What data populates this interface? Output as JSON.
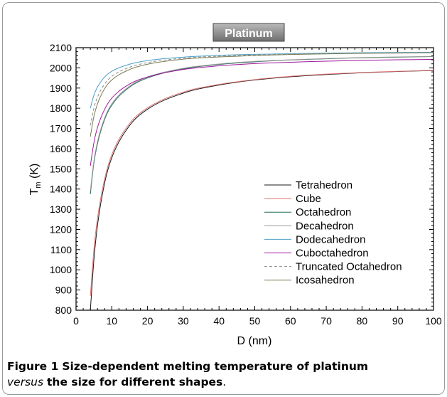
{
  "figure": {
    "label": "Figure 1",
    "caption_part1": "Size-dependent melting temperature of platinum",
    "caption_italic": "versus",
    "caption_part2": "the size for different shapes",
    "caption_end": "."
  },
  "chart_data": {
    "type": "line",
    "title": "Platinum",
    "xlabel": "D (nm)",
    "ylabel_main": "T",
    "ylabel_sub": "m",
    "ylabel_unit": " (K)",
    "xlim": [
      0,
      100
    ],
    "ylim": [
      800,
      2100
    ],
    "xticks": [
      0,
      10,
      20,
      30,
      40,
      50,
      60,
      70,
      80,
      90,
      100
    ],
    "yticks": [
      800,
      900,
      1000,
      1100,
      1200,
      1300,
      1400,
      1500,
      1600,
      1700,
      1800,
      1900,
      2000,
      2100
    ],
    "grid": false,
    "legend_position": "lower-right",
    "x": [
      4,
      5,
      6,
      8,
      10,
      15,
      20,
      30,
      40,
      50,
      60,
      70,
      80,
      90,
      100
    ],
    "series": [
      {
        "name": "Tetrahedron",
        "color": "#1a1a1a",
        "dash": "",
        "values": [
          800,
          1050,
          1220,
          1430,
          1555,
          1715,
          1795,
          1875,
          1915,
          1940,
          1956,
          1967,
          1976,
          1982,
          1987
        ]
      },
      {
        "name": "Cube",
        "color": "#e07070",
        "dash": "",
        "values": [
          870,
          1100,
          1255,
          1450,
          1570,
          1725,
          1802,
          1880,
          1918,
          1942,
          1958,
          1969,
          1977,
          1983,
          1988
        ]
      },
      {
        "name": "Octahedron",
        "color": "#1f6b55",
        "dash": "",
        "values": [
          1375,
          1530,
          1625,
          1745,
          1815,
          1905,
          1950,
          1995,
          2017,
          2030,
          2039,
          2045,
          2050,
          2053,
          2056
        ]
      },
      {
        "name": "Decahedron",
        "color": "#9a9a9a",
        "dash": "",
        "values": [
          1390,
          1540,
          1635,
          1752,
          1822,
          1910,
          1954,
          1998,
          2019,
          2032,
          2040,
          2046,
          2051,
          2054,
          2057
        ]
      },
      {
        "name": "Dodecahedron",
        "color": "#4aa0c8",
        "dash": "",
        "values": [
          1800,
          1865,
          1905,
          1955,
          1983,
          2018,
          2036,
          2053,
          2062,
          2067,
          2070,
          2073,
          2075,
          2076,
          2077
        ]
      },
      {
        "name": "Cuboctahedron",
        "color": "#a0179b",
        "dash": "",
        "values": [
          1515,
          1630,
          1705,
          1795,
          1850,
          1920,
          1955,
          1992,
          2010,
          2021,
          2028,
          2033,
          2037,
          2040,
          2042
        ]
      },
      {
        "name": "Truncated Octahedron",
        "color": "#8c8c8c",
        "dash": "4,3",
        "values": [
          1715,
          1800,
          1855,
          1920,
          1958,
          2003,
          2026,
          2048,
          2058,
          2064,
          2068,
          2071,
          2073,
          2075,
          2076
        ]
      },
      {
        "name": "Icosahedron",
        "color": "#7a7a52",
        "dash": "",
        "values": [
          1660,
          1760,
          1822,
          1897,
          1940,
          1992,
          2018,
          2043,
          2054,
          2061,
          2066,
          2069,
          2072,
          2073,
          2075
        ]
      }
    ]
  }
}
